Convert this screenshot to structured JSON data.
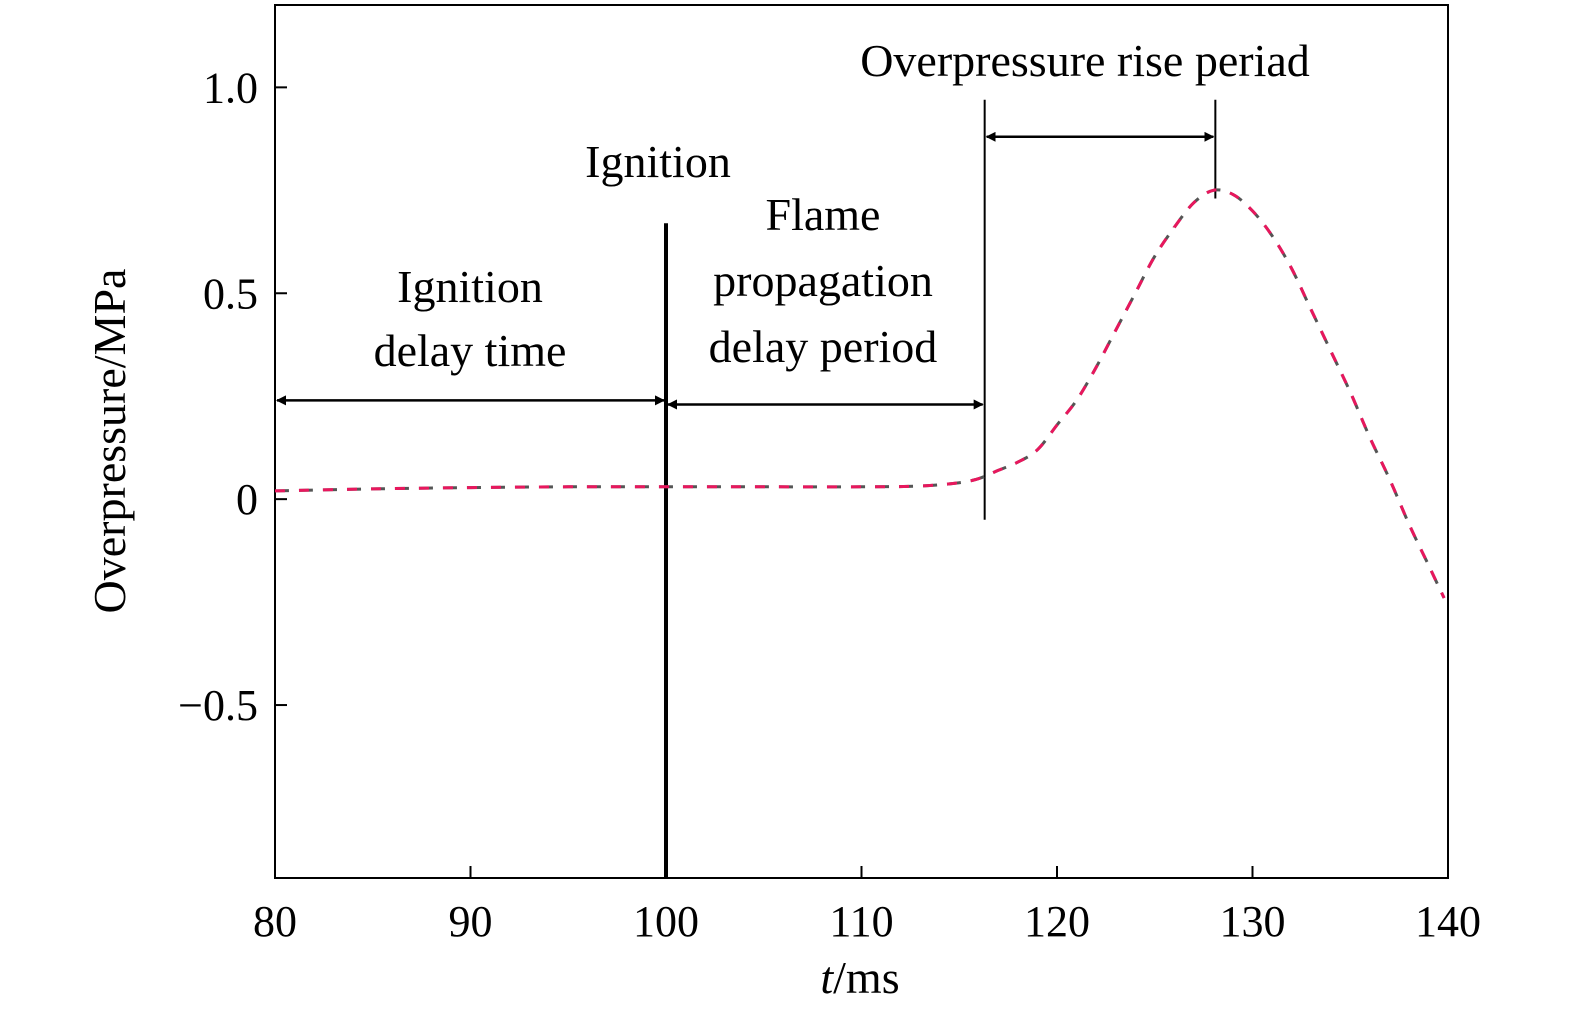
{
  "chart_data": {
    "type": "line",
    "xlabel_italic": "t",
    "xlabel_rest": "/ms",
    "ylabel": "Overpressure/MPa",
    "xlim": [
      80,
      140
    ],
    "ylim": [
      -0.92,
      1.2
    ],
    "x_ticks": [
      80,
      90,
      100,
      110,
      120,
      130,
      140
    ],
    "x_tick_labels": [
      "80",
      "90",
      "100",
      "110",
      "120",
      "130",
      "140"
    ],
    "y_ticks": [
      1.0,
      0.5,
      0,
      -0.5
    ],
    "y_tick_labels": [
      "1.0",
      "0.5",
      "0",
      "−0.5"
    ],
    "grid": false,
    "series": [
      {
        "line_style": "dashed",
        "colors": [
          "#e8175d",
          "#555555"
        ],
        "points": [
          [
            80,
            0.02
          ],
          [
            85,
            0.025
          ],
          [
            90,
            0.028
          ],
          [
            95,
            0.03
          ],
          [
            100,
            0.03
          ],
          [
            105,
            0.03
          ],
          [
            110,
            0.03
          ],
          [
            113,
            0.032
          ],
          [
            115,
            0.04
          ],
          [
            116,
            0.05
          ],
          [
            117,
            0.07
          ],
          [
            118,
            0.09
          ],
          [
            119,
            0.12
          ],
          [
            120,
            0.18
          ],
          [
            121,
            0.24
          ],
          [
            122,
            0.32
          ],
          [
            123,
            0.41
          ],
          [
            124,
            0.5
          ],
          [
            125,
            0.59
          ],
          [
            126,
            0.66
          ],
          [
            127,
            0.72
          ],
          [
            128,
            0.75
          ],
          [
            129,
            0.74
          ],
          [
            130,
            0.7
          ],
          [
            131,
            0.64
          ],
          [
            132,
            0.56
          ],
          [
            133,
            0.46
          ],
          [
            134,
            0.36
          ],
          [
            135,
            0.26
          ],
          [
            136,
            0.15
          ],
          [
            137,
            0.05
          ],
          [
            138,
            -0.06
          ],
          [
            139,
            -0.16
          ],
          [
            139.8,
            -0.24
          ]
        ]
      }
    ],
    "vertical_markers": [
      {
        "x": 100,
        "y_from": -0.92,
        "y_to": 0.67,
        "thick": true
      },
      {
        "x": 116.3,
        "y_from": -0.05,
        "y_to": 0.97,
        "thick": false
      },
      {
        "x": 128.1,
        "y_from": 0.73,
        "y_to": 0.97,
        "thick": false
      }
    ],
    "annotations": [
      {
        "id": "ignition-delay",
        "lines": [
          "Ignition",
          "delay time"
        ],
        "x_from": 80,
        "x_to": 100,
        "arrow_y": 0.24
      },
      {
        "id": "flame-propagation",
        "lines": [
          "Flame",
          "propagation",
          "delay period"
        ],
        "x_from": 100,
        "x_to": 116.3,
        "arrow_y": 0.23
      },
      {
        "id": "overpressure-rise",
        "lines": [
          "Overpressure rise periad"
        ],
        "x_from": 116.3,
        "x_to": 128.1,
        "arrow_y": 0.88
      },
      {
        "id": "ignition",
        "lines": [
          "Ignition"
        ],
        "x_at": 100
      }
    ]
  }
}
